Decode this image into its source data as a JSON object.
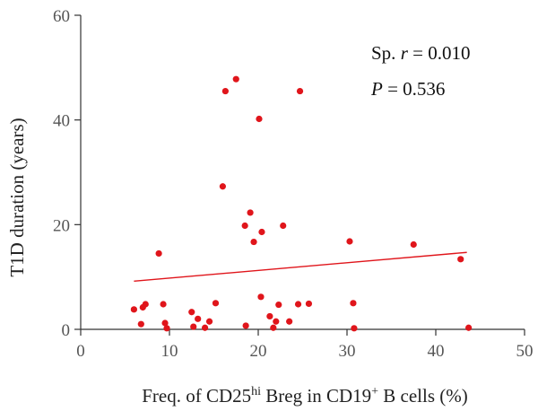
{
  "chart_data": {
    "type": "scatter",
    "xlabel_parts": [
      {
        "text": "Freq. of CD25",
        "sup": false
      },
      {
        "text": "hi",
        "sup": true
      },
      {
        "text": " Breg in CD19",
        "sup": false
      },
      {
        "text": "+",
        "sup": true
      },
      {
        "text": " B cells (%)",
        "sup": false
      }
    ],
    "ylabel": "T1D duration (years)",
    "xlim": [
      0,
      50
    ],
    "ylim": [
      0,
      60
    ],
    "xticks": [
      0,
      10,
      20,
      30,
      40,
      50
    ],
    "yticks": [
      0,
      20,
      40,
      60
    ],
    "grid": false,
    "point_color": "#e0151b",
    "line_color": "#e0151b",
    "annotation": {
      "line1_prefix": "Sp. ",
      "line1_var": "r",
      "line1_value": " = 0.010",
      "line2_var": "P",
      "line2_value": " = 0.536"
    },
    "points": [
      {
        "x": 6.0,
        "y": 3.8
      },
      {
        "x": 6.8,
        "y": 1.0
      },
      {
        "x": 7.0,
        "y": 4.2
      },
      {
        "x": 7.3,
        "y": 4.8
      },
      {
        "x": 8.8,
        "y": 14.5
      },
      {
        "x": 9.3,
        "y": 4.8
      },
      {
        "x": 9.5,
        "y": 1.2
      },
      {
        "x": 9.7,
        "y": 0.2
      },
      {
        "x": 12.5,
        "y": 3.3
      },
      {
        "x": 12.7,
        "y": 0.5
      },
      {
        "x": 13.2,
        "y": 2.0
      },
      {
        "x": 14.0,
        "y": 0.3
      },
      {
        "x": 14.5,
        "y": 1.5
      },
      {
        "x": 15.2,
        "y": 5.0
      },
      {
        "x": 16.0,
        "y": 27.3
      },
      {
        "x": 16.3,
        "y": 45.5
      },
      {
        "x": 17.5,
        "y": 47.8
      },
      {
        "x": 18.5,
        "y": 19.8
      },
      {
        "x": 18.6,
        "y": 0.7
      },
      {
        "x": 19.1,
        "y": 22.3
      },
      {
        "x": 19.5,
        "y": 16.7
      },
      {
        "x": 20.1,
        "y": 40.2
      },
      {
        "x": 20.4,
        "y": 18.6
      },
      {
        "x": 20.3,
        "y": 6.2
      },
      {
        "x": 21.3,
        "y": 2.5
      },
      {
        "x": 21.7,
        "y": 0.3
      },
      {
        "x": 22.0,
        "y": 1.5
      },
      {
        "x": 22.3,
        "y": 4.7
      },
      {
        "x": 22.8,
        "y": 19.8
      },
      {
        "x": 23.5,
        "y": 1.5
      },
      {
        "x": 24.5,
        "y": 4.8
      },
      {
        "x": 24.7,
        "y": 45.5
      },
      {
        "x": 25.7,
        "y": 4.9
      },
      {
        "x": 30.3,
        "y": 16.8
      },
      {
        "x": 30.7,
        "y": 5.0
      },
      {
        "x": 30.8,
        "y": 0.2
      },
      {
        "x": 37.5,
        "y": 16.2
      },
      {
        "x": 42.8,
        "y": 13.4
      },
      {
        "x": 43.7,
        "y": 0.3
      }
    ],
    "trend_line": {
      "x": [
        6.0,
        43.5
      ],
      "y": [
        9.2,
        14.7
      ]
    }
  }
}
